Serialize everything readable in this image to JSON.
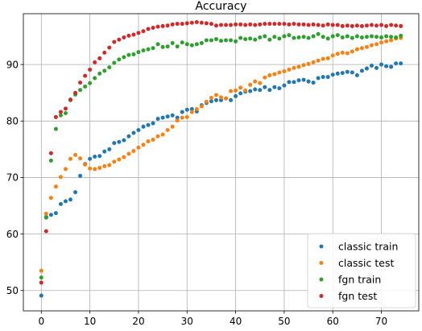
{
  "chart_data": {
    "type": "scatter",
    "title": "Accuracy",
    "xlabel": "",
    "ylabel": "",
    "xlim": [
      -3.7,
      77.7
    ],
    "ylim": [
      46.4,
      99.0
    ],
    "xticks": [
      0,
      10,
      20,
      30,
      40,
      50,
      60,
      70
    ],
    "yticks": [
      50,
      60,
      70,
      80,
      90
    ],
    "grid": true,
    "legend_position": "bottom-right",
    "series": [
      {
        "name": "classic train",
        "color": "#1f77b4",
        "x": [
          0,
          1,
          2,
          3,
          4,
          5,
          6,
          7,
          8,
          9,
          10,
          11,
          12,
          13,
          14,
          15,
          16,
          17,
          18,
          19,
          20,
          21,
          22,
          23,
          24,
          25,
          26,
          27,
          28,
          29,
          30,
          31,
          32,
          33,
          34,
          35,
          36,
          37,
          38,
          39,
          40,
          41,
          42,
          43,
          44,
          45,
          46,
          47,
          48,
          49,
          50,
          51,
          52,
          53,
          54,
          55,
          56,
          57,
          58,
          59,
          60,
          61,
          62,
          63,
          64,
          65,
          66,
          67,
          68,
          69,
          70,
          71,
          72,
          73,
          74
        ],
        "y": [
          49.1,
          63.0,
          63.4,
          63.7,
          65.3,
          65.8,
          66.1,
          67.4,
          70.3,
          72.4,
          73.3,
          73.7,
          73.8,
          74.6,
          75.0,
          76.1,
          76.3,
          76.6,
          77.3,
          77.9,
          78.4,
          79.0,
          79.3,
          79.6,
          80.4,
          80.6,
          80.8,
          81.0,
          80.6,
          81.6,
          82.0,
          82.1,
          81.7,
          82.8,
          83.2,
          83.5,
          83.7,
          83.7,
          84.0,
          83.7,
          84.4,
          84.9,
          85.2,
          85.3,
          85.6,
          85.5,
          86.0,
          85.5,
          86.0,
          85.8,
          86.3,
          86.9,
          86.9,
          87.2,
          87.3,
          87.0,
          86.8,
          87.6,
          87.8,
          87.8,
          88.2,
          88.4,
          88.5,
          88.7,
          88.6,
          88.1,
          88.9,
          89.3,
          89.8,
          89.4,
          90.0,
          89.7,
          89.6,
          90.2,
          90.2
        ]
      },
      {
        "name": "classic test",
        "color": "#ff7f0e",
        "x": [
          0,
          1,
          2,
          3,
          4,
          5,
          6,
          7,
          8,
          9,
          10,
          11,
          12,
          13,
          14,
          15,
          16,
          17,
          18,
          19,
          20,
          21,
          22,
          23,
          24,
          25,
          26,
          27,
          28,
          29,
          30,
          31,
          32,
          33,
          34,
          35,
          36,
          37,
          38,
          39,
          40,
          41,
          42,
          43,
          44,
          45,
          46,
          47,
          48,
          49,
          50,
          51,
          52,
          53,
          54,
          55,
          56,
          57,
          58,
          59,
          60,
          61,
          62,
          63,
          64,
          65,
          66,
          67,
          68,
          69,
          70,
          71,
          72,
          73,
          74
        ],
        "y": [
          53.5,
          63.6,
          66.4,
          68.4,
          70.1,
          71.5,
          73.3,
          74.0,
          73.4,
          72.3,
          71.6,
          71.5,
          71.7,
          72.0,
          72.2,
          72.8,
          73.2,
          73.6,
          74.2,
          74.7,
          75.3,
          75.8,
          76.4,
          76.7,
          77.3,
          77.6,
          78.4,
          79.0,
          80.1,
          80.6,
          80.7,
          81.6,
          82.1,
          82.6,
          83.4,
          84.1,
          84.6,
          84.2,
          84.0,
          85.3,
          85.4,
          85.9,
          85.4,
          86.4,
          87.0,
          86.7,
          87.7,
          88.1,
          88.3,
          88.6,
          88.8,
          89.1,
          89.4,
          89.6,
          89.9,
          90.1,
          90.4,
          90.7,
          91.0,
          91.1,
          91.6,
          91.9,
          92.1,
          92.0,
          92.3,
          92.7,
          92.9,
          93.1,
          93.4,
          93.6,
          93.9,
          94.1,
          94.3,
          94.6,
          94.7
        ]
      },
      {
        "name": "fgn train",
        "color": "#2ca02c",
        "x": [
          0,
          1,
          2,
          3,
          4,
          5,
          6,
          7,
          8,
          9,
          10,
          11,
          12,
          13,
          14,
          15,
          16,
          17,
          18,
          19,
          20,
          21,
          22,
          23,
          24,
          25,
          26,
          27,
          28,
          29,
          30,
          31,
          32,
          33,
          34,
          35,
          36,
          37,
          38,
          39,
          40,
          41,
          42,
          43,
          44,
          45,
          46,
          47,
          48,
          49,
          50,
          51,
          52,
          53,
          54,
          55,
          56,
          57,
          58,
          59,
          60,
          61,
          62,
          63,
          64,
          65,
          66,
          67,
          68,
          69,
          70,
          71,
          72,
          73,
          74
        ],
        "y": [
          52.3,
          62.9,
          73.0,
          78.6,
          81.0,
          81.4,
          83.7,
          84.7,
          85.5,
          86.1,
          86.7,
          87.6,
          88.4,
          88.9,
          89.5,
          90.3,
          90.9,
          91.3,
          91.7,
          91.8,
          92.2,
          92.5,
          92.7,
          92.9,
          93.6,
          93.1,
          93.2,
          93.8,
          93.2,
          93.9,
          93.6,
          93.4,
          93.6,
          93.8,
          94.3,
          94.3,
          94.5,
          94.2,
          94.3,
          94.3,
          94.1,
          94.7,
          94.5,
          94.6,
          94.4,
          94.8,
          95.0,
          94.4,
          94.9,
          94.6,
          95.0,
          95.2,
          94.7,
          94.8,
          94.9,
          94.7,
          95.0,
          95.4,
          94.9,
          94.6,
          95.0,
          95.2,
          94.8,
          95.0,
          94.7,
          95.0,
          94.8,
          94.9,
          95.0,
          94.9,
          94.8,
          95.0,
          94.9,
          94.8,
          95.1
        ]
      },
      {
        "name": "fgn test",
        "color": "#d62728",
        "x": [
          0,
          1,
          2,
          3,
          4,
          5,
          6,
          7,
          8,
          9,
          10,
          11,
          12,
          13,
          14,
          15,
          16,
          17,
          18,
          19,
          20,
          21,
          22,
          23,
          24,
          25,
          26,
          27,
          28,
          29,
          30,
          31,
          32,
          33,
          34,
          35,
          36,
          37,
          38,
          39,
          40,
          41,
          42,
          43,
          44,
          45,
          46,
          47,
          48,
          49,
          50,
          51,
          52,
          53,
          54,
          55,
          56,
          57,
          58,
          59,
          60,
          61,
          62,
          63,
          64,
          65,
          66,
          67,
          68,
          69,
          70,
          71,
          72,
          73,
          74
        ],
        "y": [
          51.4,
          60.5,
          74.3,
          80.7,
          81.6,
          82.2,
          83.8,
          85.0,
          86.8,
          88.0,
          89.1,
          90.4,
          91.1,
          92.1,
          93.0,
          94.0,
          94.4,
          94.8,
          95.1,
          95.3,
          95.6,
          95.9,
          96.3,
          96.5,
          96.7,
          96.8,
          96.9,
          97.1,
          97.2,
          97.2,
          97.3,
          97.4,
          97.5,
          97.4,
          97.3,
          97.2,
          96.9,
          97.0,
          97.0,
          97.0,
          97.1,
          97.1,
          97.0,
          97.1,
          97.0,
          97.1,
          97.2,
          97.2,
          97.2,
          97.2,
          97.2,
          97.1,
          97.2,
          97.1,
          97.1,
          97.0,
          97.1,
          97.0,
          96.9,
          97.1,
          97.0,
          97.0,
          96.8,
          96.9,
          96.8,
          96.9,
          96.8,
          96.9,
          97.0,
          96.9,
          97.0,
          96.8,
          97.0,
          96.9,
          96.8
        ]
      }
    ]
  }
}
